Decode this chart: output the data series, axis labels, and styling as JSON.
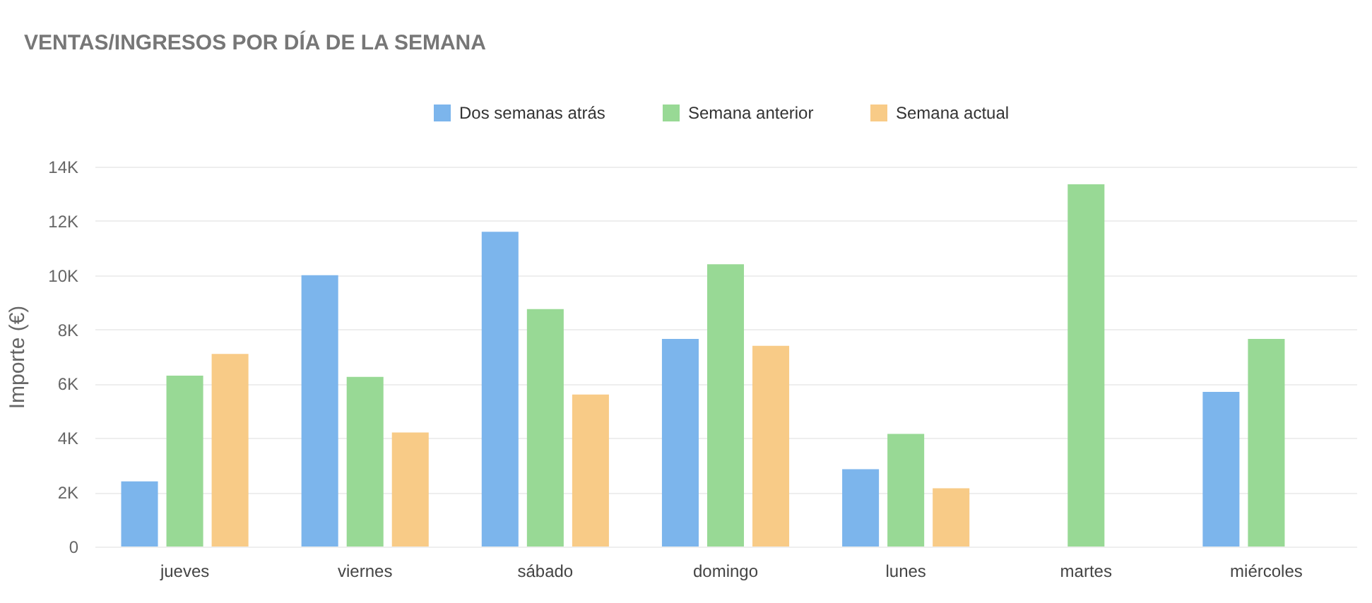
{
  "chart_data": {
    "type": "bar",
    "title": "VENTAS/INGRESOS POR DÍA DE LA SEMANA",
    "ylabel": "Importe (€)",
    "categories": [
      "jueves",
      "viernes",
      "sábado",
      "domingo",
      "lunes",
      "martes",
      "miércoles"
    ],
    "series": [
      {
        "name": "Dos semanas atrás",
        "color": "#7cb5ec",
        "values": [
          2400,
          10000,
          11600,
          7650,
          2850,
          null,
          5700
        ]
      },
      {
        "name": "Semana anterior",
        "color": "#98d995",
        "values": [
          6300,
          6250,
          8750,
          10400,
          4150,
          13350,
          7650
        ]
      },
      {
        "name": "Semana actual",
        "color": "#f8cb87",
        "values": [
          7100,
          4200,
          5600,
          7400,
          2150,
          null,
          null
        ]
      }
    ],
    "ylim": [
      0,
      14000
    ],
    "yticks": [
      0,
      {
        "value": 2000,
        "label": "2K"
      },
      {
        "value": 4000,
        "label": "4K"
      },
      {
        "value": 6000,
        "label": "6K"
      },
      {
        "value": 8000,
        "label": "8K"
      },
      {
        "value": 10000,
        "label": "10K"
      },
      {
        "value": 12000,
        "label": "12K"
      },
      {
        "value": 14000,
        "label": "14K"
      }
    ],
    "grid": "y",
    "legend": "top"
  }
}
